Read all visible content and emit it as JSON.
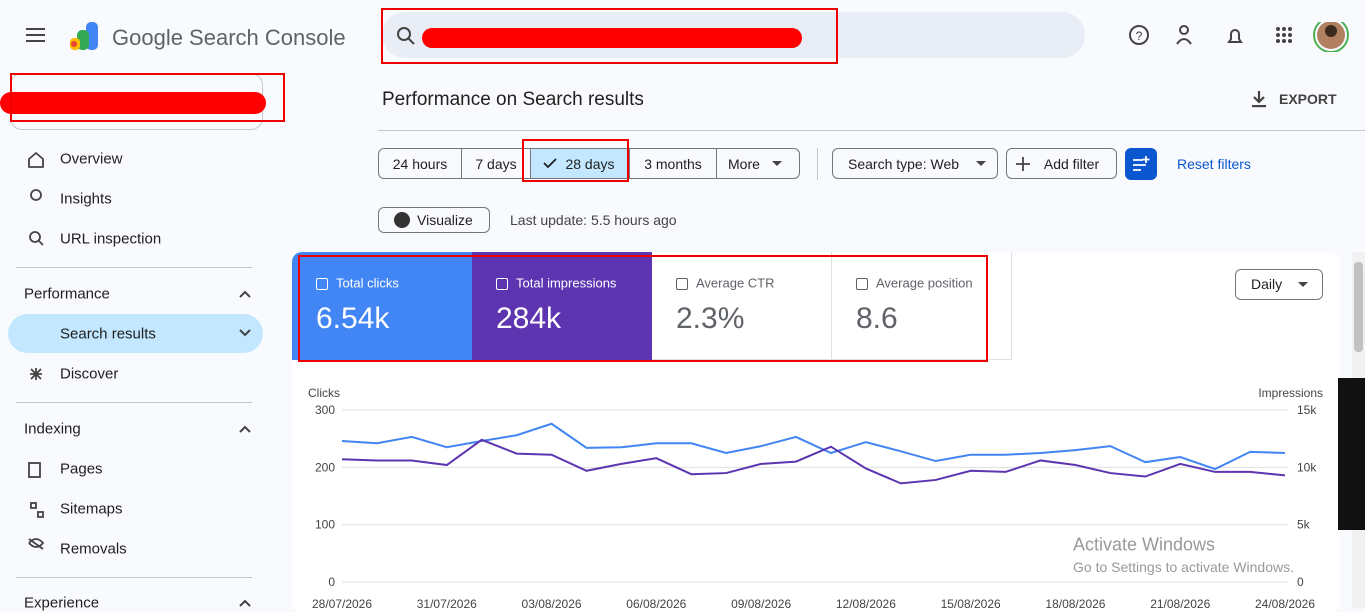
{
  "header": {
    "product": "Google Search Console"
  },
  "sidebar": {
    "items": [
      "Overview",
      "Insights",
      "URL inspection"
    ],
    "sections": [
      {
        "title": "Performance",
        "items": [
          "Search results",
          "Discover"
        ]
      },
      {
        "title": "Indexing",
        "items": [
          "Pages",
          "Sitemaps",
          "Removals"
        ]
      },
      {
        "title": "Experience"
      }
    ]
  },
  "main": {
    "title": "Performance on Search results",
    "export": "EXPORT",
    "date_ranges": [
      "24 hours",
      "7 days",
      "28 days",
      "3 months",
      "More"
    ],
    "search_type": "Search type: Web",
    "add_filter": "Add filter",
    "reset_filters": "Reset filters",
    "visualize": "Visualize",
    "last_update": "Last update: 5.5 hours ago",
    "granularity": "Daily"
  },
  "metrics": [
    {
      "label": "Total clicks",
      "value": "6.54k"
    },
    {
      "label": "Total impressions",
      "value": "284k"
    },
    {
      "label": "Average CTR",
      "value": "2.3%"
    },
    {
      "label": "Average position",
      "value": "8.6"
    }
  ],
  "chart_data": {
    "type": "line",
    "x": [
      "28/07/2026",
      null,
      null,
      "31/07/2026",
      null,
      null,
      "03/08/2026",
      null,
      null,
      "06/08/2026",
      null,
      null,
      "09/08/2026",
      null,
      null,
      "12/08/2026",
      null,
      null,
      "15/08/2026",
      null,
      null,
      "18/08/2026",
      null,
      null,
      "21/08/2026",
      null,
      null,
      "24/08/2026"
    ],
    "series": [
      {
        "name": "Clicks",
        "color": "#4285f4",
        "values": [
          246,
          242,
          253,
          235,
          246,
          256,
          276,
          234,
          235,
          242,
          242,
          225,
          237,
          253,
          225,
          244,
          228,
          211,
          222,
          222,
          225,
          230,
          237,
          209,
          218,
          197,
          227,
          225
        ]
      },
      {
        "name": "Impressions",
        "color": "#5e35b1",
        "axis": "y2",
        "values": [
          10700,
          10600,
          10600,
          10200,
          12400,
          11200,
          11100,
          9700,
          10300,
          10800,
          9400,
          9500,
          10300,
          10500,
          11800,
          9900,
          8600,
          8900,
          9700,
          9600,
          10600,
          10200,
          9500,
          9200,
          10300,
          9600,
          9600,
          9300
        ]
      }
    ],
    "ylim": [
      0,
      300
    ],
    "yticks": [
      0,
      100,
      200,
      300
    ],
    "y2lim": [
      0,
      15000
    ],
    "y2ticks": [
      0,
      {
        "value": 5000,
        "label": "5k"
      },
      {
        "value": 10000,
        "label": "10k"
      },
      {
        "value": 15000,
        "label": "15k"
      }
    ],
    "grid": true
  },
  "watermark": {
    "title": "Activate Windows",
    "subtitle": "Go to Settings to activate Windows."
  }
}
